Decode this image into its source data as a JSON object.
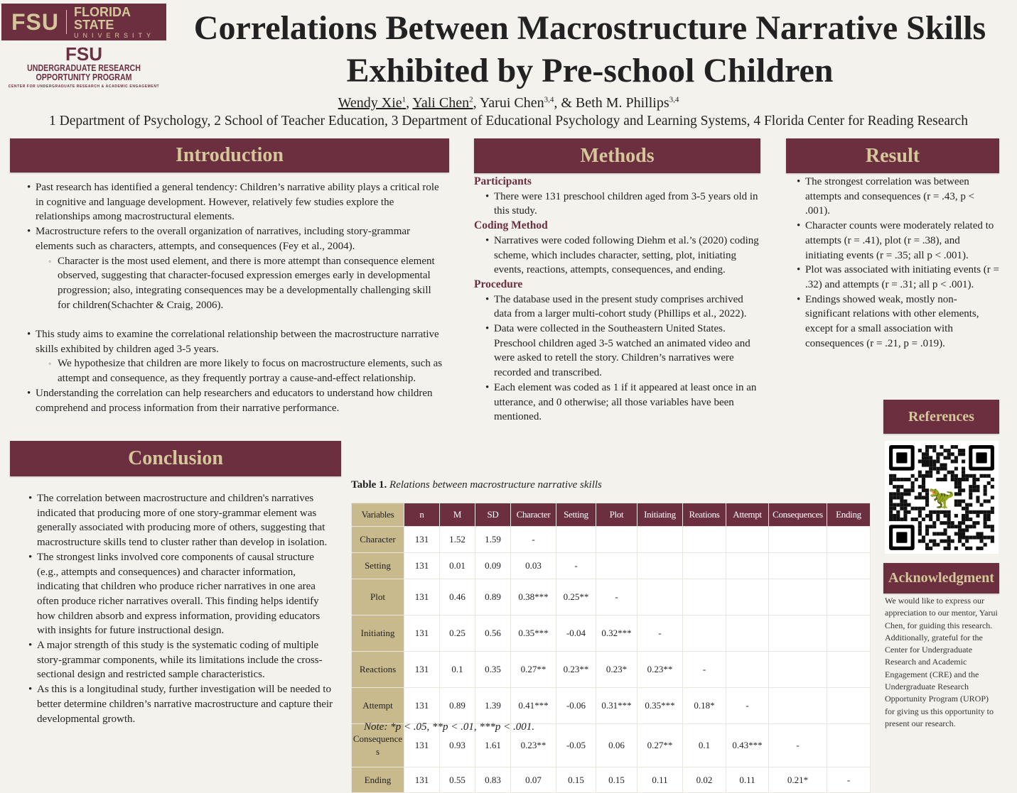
{
  "logo": {
    "fsu": "FSU",
    "florida_state": "FLORIDA STATE",
    "university": "UNIVERSITY",
    "urop_line1": "UNDERGRADUATE RESEARCH",
    "urop_line2": "OPPORTUNITY PROGRAM",
    "cre": "CENTER FOR UNDERGRADUATE RESEARCH & ACADEMIC ENGAGEMENT"
  },
  "title_line1": "Correlations Between Macrostructure Narrative Skills",
  "title_line2": "Exhibited by Pre-school Children",
  "authors": [
    {
      "name": "Wendy Xie",
      "sup": "1"
    },
    {
      "name": "Yali Chen",
      "sup": "2"
    },
    {
      "name": "Yarui Chen",
      "sup": "3,4"
    },
    {
      "name": "Beth M. Phillips",
      "sup": "3,4"
    }
  ],
  "affiliations": "1 Department of Psychology, 2 School of Teacher Education, 3 Department of Educational Psychology and Learning Systems, 4 Florida Center for Reading Research",
  "introduction": {
    "heading": "Introduction",
    "items": [
      {
        "type": "b",
        "text": "Past research has identified a general tendency: Children’s narrative ability plays a critical role in cognitive and language development. However, relatively few studies explore the relationships among macrostructural elements."
      },
      {
        "type": "b",
        "text": "Macrostructure refers to the overall organization of narratives, including story-grammar elements such as characters, attempts, and consequences (Fey et al., 2004)."
      },
      {
        "type": "c",
        "text": "Character is the most used element, and there is more attempt than consequence element observed, suggesting that character-focused expression emerges early in developmental progression; also, integrating consequences may be a developmentally challenging skill for children(Schachter & Craig, 2006)."
      },
      {
        "type": "b",
        "text": "This study aims to examine the correlational relationship between the macrostructure narrative skills exhibited by children aged 3-5 years."
      },
      {
        "type": "c",
        "text": "We hypothesize that children are more likely to focus on macrostructure elements, such as attempt and consequence, as they frequently portray a cause-and-effect relationship."
      },
      {
        "type": "b",
        "text": "Understanding the correlation can help researchers and educators to understand how children comprehend and process information from their narrative performance."
      }
    ]
  },
  "methods": {
    "heading": "Methods",
    "sections": [
      {
        "title": "Participants",
        "items": [
          "There were 131 preschool children aged from 3-5 years old in this study."
        ]
      },
      {
        "title": "Coding Method",
        "items": [
          "Narratives were coded following Diehm et al.’s (2020) coding scheme, which includes character, setting, plot, initiating events, reactions, attempts, consequences, and ending."
        ]
      },
      {
        "title": "Procedure",
        "items": [
          "The database used in the present study comprises archived data from a larger multi-cohort study (Phillips et al., 2022).",
          "Data were collected in the Southeastern United States. Preschool children aged 3-5 watched an animated video and were asked to retell the story. Children’s narratives were recorded and transcribed.",
          "Each element was coded as 1 if it appeared at least once in an utterance, and 0 otherwise; all those variables have been mentioned."
        ]
      }
    ]
  },
  "result": {
    "heading": "Result",
    "items": [
      "The strongest correlation was between attempts and consequences (r = .43, p < .001).",
      "Character counts were moderately related to attempts (r = .41), plot (r = .38), and initiating events (r = .35; all p < .001).",
      "Plot was associated with initiating events (r = .32) and attempts (r = .31; all p < .001).",
      "Endings showed weak, mostly non-significant relations with other elements, except for a small association with consequences (r = .21, p = .019)."
    ]
  },
  "references": {
    "heading": "References"
  },
  "acknowledgment": {
    "heading": "Acknowledgment",
    "text": "We would like to express our appreciation to our mentor, Yarui Chen, for guiding this research. Additionally, grateful for the Center for Undergraduate Research and Academic Engagement (CRE) and the Undergraduate Research Opportunity Program (UROP) for giving us this opportunity to present our research."
  },
  "conclusion": {
    "heading": "Conclusion",
    "items": [
      "The correlation between macrostructure and children's narratives indicated that producing more of one story-grammar element was generally associated with producing more of others, suggesting that macrostructure skills tend to cluster rather than develop in isolation.",
      "The strongest links involved core components of causal structure (e.g., attempts and consequences) and character information, indicating that children who produce richer narratives in one area often produce richer narratives overall. This finding helps identify how children absorb and express information, providing educators with insights for future instructional design.",
      "A major strength of this study is the systematic coding of multiple story-grammar components, while its limitations include the cross-sectional design and restricted sample characteristics.",
      "As this is a longitudinal study, further investigation will be needed to better determine children’s narrative macrostructure and capture their developmental growth."
    ]
  },
  "table": {
    "label": "Table 1.",
    "caption": "Relations between macrostructure narrative skills",
    "headers": [
      "Variables",
      "n",
      "M",
      "SD",
      "Character",
      "Setting",
      "Plot",
      "Initiating",
      "Reations",
      "Attempt",
      "Consequences",
      "Ending"
    ],
    "rows": [
      [
        "Character",
        "131",
        "1.52",
        "1.59",
        "-",
        "",
        "",
        "",
        "",
        "",
        "",
        ""
      ],
      [
        "Setting",
        "131",
        "0.01",
        "0.09",
        "0.03",
        "-",
        "",
        "",
        "",
        "",
        "",
        ""
      ],
      [
        "Plot",
        "131",
        "0.46",
        "0.89",
        "0.38***",
        "0.25**",
        "-",
        "",
        "",
        "",
        "",
        ""
      ],
      [
        "Initiating",
        "131",
        "0.25",
        "0.56",
        "0.35***",
        "-0.04",
        "0.32***",
        "-",
        "",
        "",
        "",
        ""
      ],
      [
        "Reactions",
        "131",
        "0.1",
        "0.35",
        "0.27**",
        "0.23**",
        "0.23*",
        "0.23**",
        "-",
        "",
        "",
        ""
      ],
      [
        "Attempt",
        "131",
        "0.89",
        "1.39",
        "0.41***",
        "-0.06",
        "0.31***",
        "0.35***",
        "0.18*",
        "-",
        "",
        ""
      ],
      [
        "Consequences",
        "131",
        "0.93",
        "1.61",
        "0.23**",
        "-0.05",
        "0.06",
        "0.27**",
        "0.1",
        "0.43***",
        "-",
        ""
      ],
      [
        "Ending",
        "131",
        "0.55",
        "0.83",
        "0.07",
        "0.15",
        "0.15",
        "0.11",
        "0.02",
        "0.11",
        "0.21*",
        "-"
      ]
    ],
    "note": "Note: *p < .05, **p < .01, ***p < .001."
  },
  "colors": {
    "maroon": "#6b2f3f",
    "gold": "#d4c79a",
    "tan": "#c8ba8c"
  }
}
